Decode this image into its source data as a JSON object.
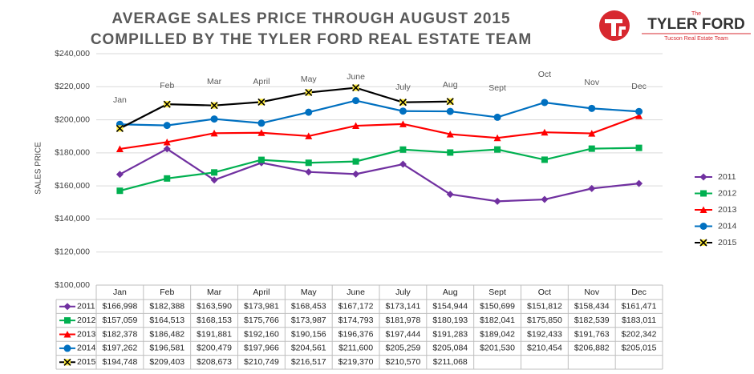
{
  "chart_data": {
    "type": "line",
    "title": "AVERAGE SALES PRICE THROUGH AUGUST 2015",
    "subtitle": "COMPILLED BY THE TYLER FORD REAL ESTATE TEAM",
    "y_label": "SALES PRICE",
    "categories": [
      "Jan",
      "Feb",
      "Mar",
      "April",
      "May",
      "June",
      "July",
      "Aug",
      "Sept",
      "Oct",
      "Nov",
      "Dec"
    ],
    "ylim": [
      100000,
      240000
    ],
    "yticks": [
      {
        "value": 100000,
        "label": "$100,000"
      },
      {
        "value": 120000,
        "label": "$120,000"
      },
      {
        "value": 140000,
        "label": "$140,000"
      },
      {
        "value": 160000,
        "label": "$160,000"
      },
      {
        "value": 180000,
        "label": "$180,000"
      },
      {
        "value": 200000,
        "label": "$200,000"
      },
      {
        "value": 220000,
        "label": "$220,000"
      },
      {
        "value": 240000,
        "label": "$240,000"
      }
    ],
    "grid": true,
    "legend": "right",
    "series": [
      {
        "name": "2011",
        "color": "#7030a0",
        "marker": "diamond",
        "values": [
          166998,
          182388,
          163590,
          173981,
          168453,
          167172,
          173141,
          154944,
          150699,
          151812,
          158434,
          161471
        ],
        "value_labels": [
          "$166,998",
          "$182,388",
          "$163,590",
          "$173,981",
          "$168,453",
          "$167,172",
          "$173,141",
          "$154,944",
          "$150,699",
          "$151,812",
          "$158,434",
          "$161,471"
        ]
      },
      {
        "name": "2012",
        "color": "#00b050",
        "marker": "square",
        "values": [
          157059,
          164513,
          168153,
          175766,
          173987,
          174793,
          181978,
          180193,
          182041,
          175850,
          182539,
          183011
        ],
        "value_labels": [
          "$157,059",
          "$164,513",
          "$168,153",
          "$175,766",
          "$173,987",
          "$174,793",
          "$181,978",
          "$180,193",
          "$182,041",
          "$175,850",
          "$182,539",
          "$183,011"
        ]
      },
      {
        "name": "2013",
        "color": "#ff0000",
        "marker": "triangle",
        "values": [
          182378,
          186482,
          191881,
          192160,
          190156,
          196376,
          197444,
          191283,
          189042,
          192433,
          191763,
          202342
        ],
        "value_labels": [
          "$182,378",
          "$186,482",
          "$191,881",
          "$192,160",
          "$190,156",
          "$196,376",
          "$197,444",
          "$191,283",
          "$189,042",
          "$192,433",
          "$191,763",
          "$202,342"
        ]
      },
      {
        "name": "2014",
        "color": "#0070c0",
        "marker": "circle",
        "values": [
          197262,
          196581,
          200479,
          197966,
          204561,
          211600,
          205259,
          205084,
          201530,
          210454,
          206882,
          205015
        ],
        "value_labels": [
          "$197,262",
          "$196,581",
          "$200,479",
          "$197,966",
          "$204,561",
          "$211,600",
          "$205,259",
          "$205,084",
          "$201,530",
          "$210,454",
          "$206,882",
          "$205,015"
        ]
      },
      {
        "name": "2015",
        "color": "#000000",
        "marker": "x",
        "values": [
          194748,
          209403,
          208673,
          210749,
          216517,
          219370,
          210570,
          211068,
          null,
          null,
          null,
          null
        ],
        "value_labels": [
          "$194,748",
          "$209,403",
          "$208,673",
          "$210,749",
          "$216,517",
          "$219,370",
          "$210,570",
          "$211,068",
          null,
          null,
          null,
          null
        ]
      }
    ]
  },
  "logo": {
    "top": "The",
    "name": "TYLER FORD",
    "tagline": "Tucson Real Estate Team"
  }
}
